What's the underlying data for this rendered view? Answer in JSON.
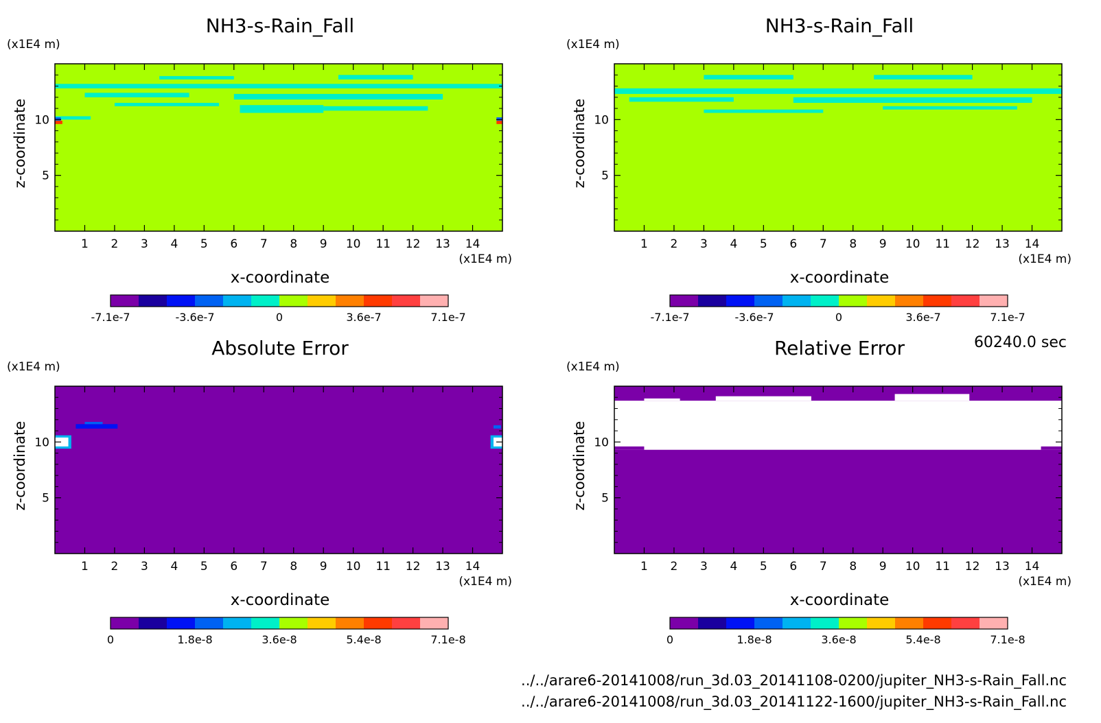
{
  "time_label": "60240.0 sec",
  "file_lines": [
    "../../arare6-20141008/run_3d.03_20141108-0200/jupiter_NH3-s-Rain_Fall.nc",
    "../../arare6-20141008/run_3d.03_20141122-1600/jupiter_NH3-s-Rain_Fall.nc"
  ],
  "palette": [
    "#7b00a8",
    "#1a009e",
    "#0012f5",
    "#0062f3",
    "#00b3f0",
    "#00f0c8",
    "#a8ff00",
    "#ffcc00",
    "#ff8000",
    "#ff3a00",
    "#ff4040",
    "#ffb0b0"
  ],
  "chart_data": [
    {
      "type": "heatmap",
      "title": "NH3-s-Rain_Fall",
      "xlabel": "x-coordinate",
      "ylabel": "z-coordinate",
      "x_unit": "(x1E4 m)",
      "y_unit": "(x1E4 m)",
      "xlim": [
        0,
        15
      ],
      "ylim": [
        0,
        15
      ],
      "x_ticks": [
        1,
        2,
        3,
        4,
        5,
        6,
        7,
        8,
        9,
        10,
        11,
        12,
        13,
        14
      ],
      "y_ticks": [
        5,
        10
      ],
      "background_level": 6,
      "patches": [
        {
          "level": 5,
          "x0": 0.0,
          "x1": 15.0,
          "z0": 12.8,
          "z1": 13.2
        },
        {
          "level": 5,
          "x0": 3.5,
          "x1": 6.0,
          "z0": 13.6,
          "z1": 13.9
        },
        {
          "level": 5,
          "x0": 9.5,
          "x1": 12.0,
          "z0": 13.6,
          "z1": 14.0
        },
        {
          "level": 5,
          "x0": 1.0,
          "x1": 4.5,
          "z0": 12.0,
          "z1": 12.4
        },
        {
          "level": 5,
          "x0": 6.0,
          "x1": 13.0,
          "z0": 11.8,
          "z1": 12.3
        },
        {
          "level": 5,
          "x0": 6.2,
          "x1": 9.0,
          "z0": 10.6,
          "z1": 11.3
        },
        {
          "level": 5,
          "x0": 9.0,
          "x1": 12.5,
          "z0": 10.8,
          "z1": 11.2
        },
        {
          "level": 5,
          "x0": 2.0,
          "x1": 5.5,
          "z0": 11.2,
          "z1": 11.5
        },
        {
          "level": 5,
          "x0": 0.0,
          "x1": 1.2,
          "z0": 10.0,
          "z1": 10.3
        },
        {
          "level": 3,
          "x0": 0.0,
          "x1": 0.2,
          "z0": 9.9,
          "z1": 10.2
        },
        {
          "level": 9,
          "x0": 0.0,
          "x1": 0.25,
          "z0": 9.6,
          "z1": 9.9
        },
        {
          "level": 3,
          "x0": 14.8,
          "x1": 15.0,
          "z0": 9.9,
          "z1": 10.2
        },
        {
          "level": 9,
          "x0": 14.8,
          "x1": 15.0,
          "z0": 9.6,
          "z1": 9.9
        }
      ],
      "colorbar": {
        "tick_labels": [
          "-7.1e-7",
          "-3.6e-7",
          "0",
          "3.6e-7",
          "7.1e-7"
        ],
        "range": [
          -7.1e-07,
          7.1e-07
        ]
      }
    },
    {
      "type": "heatmap",
      "title": "NH3-s-Rain_Fall",
      "xlabel": "x-coordinate",
      "ylabel": "z-coordinate",
      "x_unit": "(x1E4 m)",
      "y_unit": "(x1E4 m)",
      "xlim": [
        0,
        15
      ],
      "ylim": [
        0,
        15
      ],
      "x_ticks": [
        1,
        2,
        3,
        4,
        5,
        6,
        7,
        8,
        9,
        10,
        11,
        12,
        13,
        14
      ],
      "y_ticks": [
        5,
        10
      ],
      "background_level": 6,
      "patches": [
        {
          "level": 5,
          "x0": 0.0,
          "x1": 15.0,
          "z0": 12.3,
          "z1": 12.8
        },
        {
          "level": 5,
          "x0": 3.0,
          "x1": 6.0,
          "z0": 13.6,
          "z1": 14.0
        },
        {
          "level": 5,
          "x0": 8.7,
          "x1": 12.0,
          "z0": 13.6,
          "z1": 14.0
        },
        {
          "level": 5,
          "x0": 0.5,
          "x1": 4.0,
          "z0": 11.6,
          "z1": 12.0
        },
        {
          "level": 5,
          "x0": 6.0,
          "x1": 14.0,
          "z0": 11.5,
          "z1": 12.0
        },
        {
          "level": 5,
          "x0": 3.0,
          "x1": 7.0,
          "z0": 10.6,
          "z1": 10.9
        },
        {
          "level": 5,
          "x0": 9.0,
          "x1": 13.5,
          "z0": 10.9,
          "z1": 11.2
        }
      ],
      "colorbar": {
        "tick_labels": [
          "-7.1e-7",
          "-3.6e-7",
          "0",
          "3.6e-7",
          "7.1e-7"
        ],
        "range": [
          -7.1e-07,
          7.1e-07
        ]
      }
    },
    {
      "type": "heatmap",
      "title": "Absolute Error",
      "xlabel": "x-coordinate",
      "ylabel": "z-coordinate",
      "x_unit": "(x1E4 m)",
      "y_unit": "(x1E4 m)",
      "xlim": [
        0,
        15
      ],
      "ylim": [
        0,
        15
      ],
      "x_ticks": [
        1,
        2,
        3,
        4,
        5,
        6,
        7,
        8,
        9,
        10,
        11,
        12,
        13,
        14
      ],
      "y_ticks": [
        5,
        10
      ],
      "background_level": 0,
      "patches": [
        {
          "level": 2,
          "x0": 0.7,
          "x1": 2.1,
          "z0": 11.2,
          "z1": 11.6
        },
        {
          "level": 3,
          "x0": 1.0,
          "x1": 1.6,
          "z0": 11.6,
          "z1": 11.8
        },
        {
          "level": 4,
          "x0": 0.0,
          "x1": 0.55,
          "z0": 9.4,
          "z1": 10.6
        },
        {
          "level": -1,
          "x0": 0.0,
          "x1": 0.45,
          "z0": 9.6,
          "z1": 10.4
        },
        {
          "level": 3,
          "x0": 14.7,
          "x1": 14.95,
          "z0": 11.2,
          "z1": 11.5
        },
        {
          "level": 4,
          "x0": 14.6,
          "x1": 15.0,
          "z0": 9.4,
          "z1": 10.6
        },
        {
          "level": -1,
          "x0": 14.7,
          "x1": 15.0,
          "z0": 9.6,
          "z1": 10.4
        }
      ],
      "colorbar": {
        "tick_labels": [
          "0",
          "1.8e-8",
          "3.6e-8",
          "5.4e-8",
          "7.1e-8"
        ],
        "range": [
          0,
          7.1e-08
        ]
      }
    },
    {
      "type": "heatmap",
      "title": "Relative Error",
      "xlabel": "x-coordinate",
      "ylabel": "z-coordinate",
      "x_unit": "(x1E4 m)",
      "y_unit": "(x1E4 m)",
      "xlim": [
        0,
        15
      ],
      "ylim": [
        0,
        15
      ],
      "x_ticks": [
        1,
        2,
        3,
        4,
        5,
        6,
        7,
        8,
        9,
        10,
        11,
        12,
        13,
        14
      ],
      "y_ticks": [
        5,
        10
      ],
      "background_level": 0,
      "patches": [
        {
          "level": -1,
          "x0": 0.0,
          "x1": 15.0,
          "z0": 9.3,
          "z1": 13.7
        },
        {
          "level": -1,
          "x0": 3.4,
          "x1": 6.6,
          "z0": 13.7,
          "z1": 14.1
        },
        {
          "level": -1,
          "x0": 9.4,
          "x1": 11.9,
          "z0": 13.7,
          "z1": 14.3
        },
        {
          "level": -1,
          "x0": 1.0,
          "x1": 2.2,
          "z0": 13.7,
          "z1": 13.9
        },
        {
          "level": 0,
          "x0": 0.0,
          "x1": 1.0,
          "z0": 9.3,
          "z1": 9.6
        },
        {
          "level": 0,
          "x0": 14.3,
          "x1": 15.0,
          "z0": 9.3,
          "z1": 9.6
        }
      ],
      "colorbar": {
        "tick_labels": [
          "0",
          "1.8e-8",
          "3.6e-8",
          "5.4e-8",
          "7.1e-8"
        ],
        "range": [
          0,
          7.1e-08
        ]
      }
    }
  ]
}
